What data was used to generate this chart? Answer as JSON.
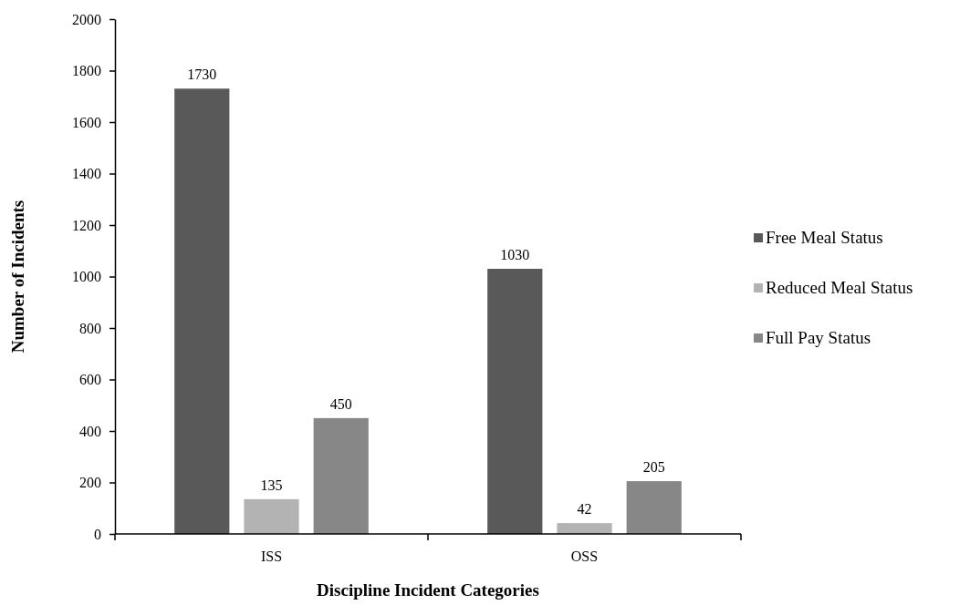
{
  "chart_data": {
    "type": "bar",
    "xlabel": "Discipline Incident Categories",
    "ylabel": "Number of Incidents",
    "categories": [
      "ISS",
      "OSS"
    ],
    "series": [
      {
        "name": "Free Meal Status",
        "color": "#595959",
        "values": [
          1730,
          1030
        ]
      },
      {
        "name": "Reduced Meal Status",
        "color": "#b3b3b3",
        "values": [
          135,
          42
        ]
      },
      {
        "name": "Full Pay Status",
        "color": "#878787",
        "values": [
          450,
          205
        ]
      }
    ],
    "ylim": [
      0,
      2000
    ],
    "yticks": [
      0,
      200,
      400,
      600,
      800,
      1000,
      1200,
      1400,
      1600,
      1800,
      2000
    ],
    "data_labels": true,
    "legend": "right",
    "grid": false
  }
}
